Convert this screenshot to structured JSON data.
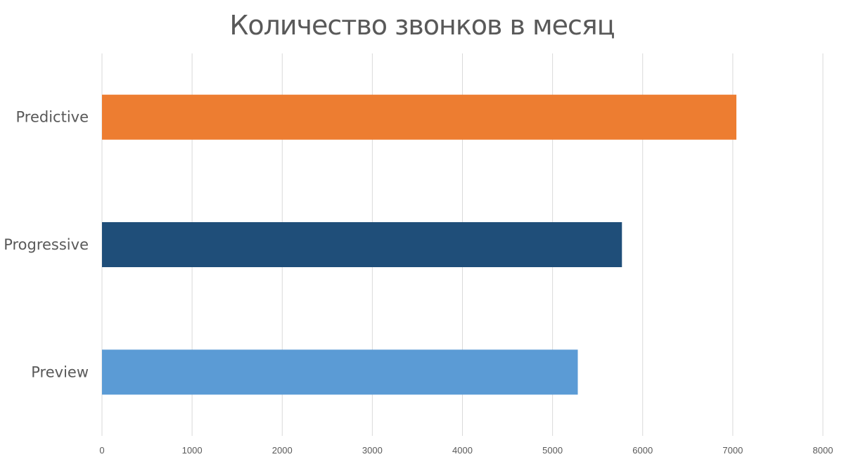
{
  "chart_data": {
    "type": "bar",
    "orientation": "horizontal",
    "title": "Количество звонков в месяц",
    "categories": [
      "Predictive",
      "Progressive",
      "Preview"
    ],
    "values": [
      7040,
      5770,
      5280
    ],
    "colors": [
      "#ed7d31",
      "#1f4e79",
      "#5b9bd5"
    ],
    "xlim": [
      0,
      8000
    ],
    "xticks": [
      "0",
      "1000",
      "2000",
      "3000",
      "4000",
      "5000",
      "6000",
      "7000",
      "8000"
    ],
    "grid": true,
    "legend": "none"
  }
}
